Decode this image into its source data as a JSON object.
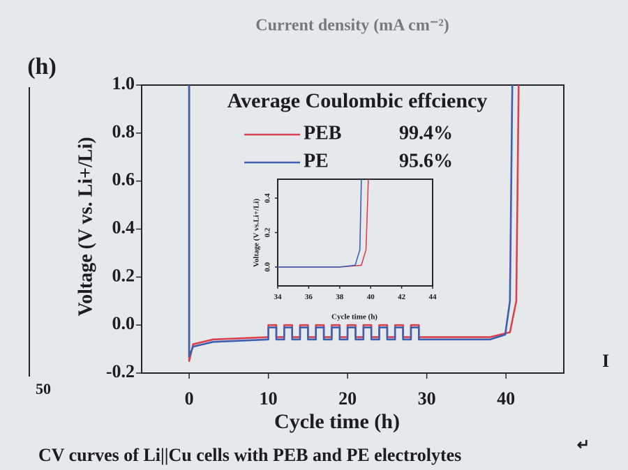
{
  "page": {
    "top_text": "Current density (mA cm⁻²)",
    "side_tick": "50",
    "caption": "CV curves of Li||Cu cells with PEB and PE electrolytes"
  },
  "chart_data": [
    {
      "type": "line",
      "panel_label": "(h)",
      "legend_title": "Average Coulombic effciency",
      "x_label": "Cycle time (h)",
      "y_label": "Voltage (V vs. Li+/Li)",
      "xlim": [
        -6,
        47.3
      ],
      "ylim": [
        -0.2,
        1.0
      ],
      "xticks": [
        0,
        10,
        20,
        30,
        40
      ],
      "yticks": [
        {
          "value": 1.0,
          "label": "1.0"
        },
        0.8,
        0.6,
        0.4,
        0.2,
        {
          "value": 0.0,
          "label": "0.0"
        },
        -0.2
      ],
      "series": [
        {
          "name": "PEB",
          "color": "#d9414f",
          "efficiency": 99.4,
          "efficiency_label": "99.4%",
          "x": [
            0,
            0,
            0.5,
            3,
            10,
            10,
            11,
            11,
            12,
            12,
            13,
            13,
            14,
            14,
            15,
            15,
            16,
            16,
            17,
            17,
            18,
            18,
            19,
            19,
            20,
            20,
            21,
            21,
            22,
            22,
            23,
            23,
            24,
            24,
            25,
            25,
            26,
            26,
            27,
            27,
            28,
            28,
            29,
            29,
            38,
            40.5,
            41.3,
            41.6
          ],
          "values": [
            1.0,
            -0.15,
            -0.08,
            -0.06,
            -0.05,
            0.0,
            0.0,
            -0.05,
            -0.05,
            0.0,
            0.0,
            -0.05,
            -0.05,
            0.0,
            0.0,
            -0.05,
            -0.05,
            0.0,
            0.0,
            -0.05,
            -0.05,
            0.0,
            0.0,
            -0.05,
            -0.05,
            0.0,
            0.0,
            -0.05,
            -0.05,
            0.0,
            0.0,
            -0.05,
            -0.05,
            0.0,
            0.0,
            -0.05,
            -0.05,
            0.0,
            0.0,
            -0.05,
            -0.05,
            0.0,
            0.0,
            -0.05,
            -0.05,
            -0.03,
            0.1,
            1.0
          ]
        },
        {
          "name": "PE",
          "color": "#3d5fb0",
          "efficiency": 95.6,
          "efficiency_label": "95.6%",
          "x": [
            0,
            0,
            0.5,
            3,
            10,
            10,
            11,
            11,
            12,
            12,
            13,
            13,
            14,
            14,
            15,
            15,
            16,
            16,
            17,
            17,
            18,
            18,
            19,
            19,
            20,
            20,
            21,
            21,
            22,
            22,
            23,
            23,
            24,
            24,
            25,
            25,
            26,
            26,
            27,
            27,
            28,
            28,
            29,
            29,
            38,
            39.9,
            40.5,
            40.8
          ],
          "values": [
            1.0,
            -0.13,
            -0.09,
            -0.07,
            -0.06,
            -0.01,
            -0.01,
            -0.06,
            -0.06,
            -0.01,
            -0.01,
            -0.06,
            -0.06,
            -0.01,
            -0.01,
            -0.06,
            -0.06,
            -0.01,
            -0.01,
            -0.06,
            -0.06,
            -0.01,
            -0.01,
            -0.06,
            -0.06,
            -0.01,
            -0.01,
            -0.06,
            -0.06,
            -0.01,
            -0.01,
            -0.06,
            -0.06,
            -0.01,
            -0.01,
            -0.06,
            -0.06,
            -0.01,
            -0.01,
            -0.06,
            -0.06,
            -0.01,
            -0.01,
            -0.06,
            -0.06,
            -0.04,
            0.1,
            1.0
          ]
        }
      ]
    },
    {
      "type": "line",
      "x_label": "Cycle time (h)",
      "y_label": "Voltage (V vs.Li+/Li)",
      "xlim": [
        34,
        44
      ],
      "ylim": [
        -0.11,
        0.51
      ],
      "xticks": [
        34,
        36,
        38,
        40,
        42,
        44
      ],
      "yticks": [
        {
          "value": 0.0,
          "label": "0.0"
        },
        0.2,
        0.4
      ],
      "series": [
        {
          "color": "#d9414f",
          "x": [
            34,
            38,
            39.4,
            39.7,
            39.85
          ],
          "values": [
            0.0,
            0.0,
            0.01,
            0.1,
            0.51
          ]
        },
        {
          "color": "#3d5fb0",
          "x": [
            34,
            38,
            39.0,
            39.3,
            39.4
          ],
          "values": [
            0.0,
            0.0,
            0.01,
            0.1,
            0.51
          ]
        }
      ]
    }
  ]
}
